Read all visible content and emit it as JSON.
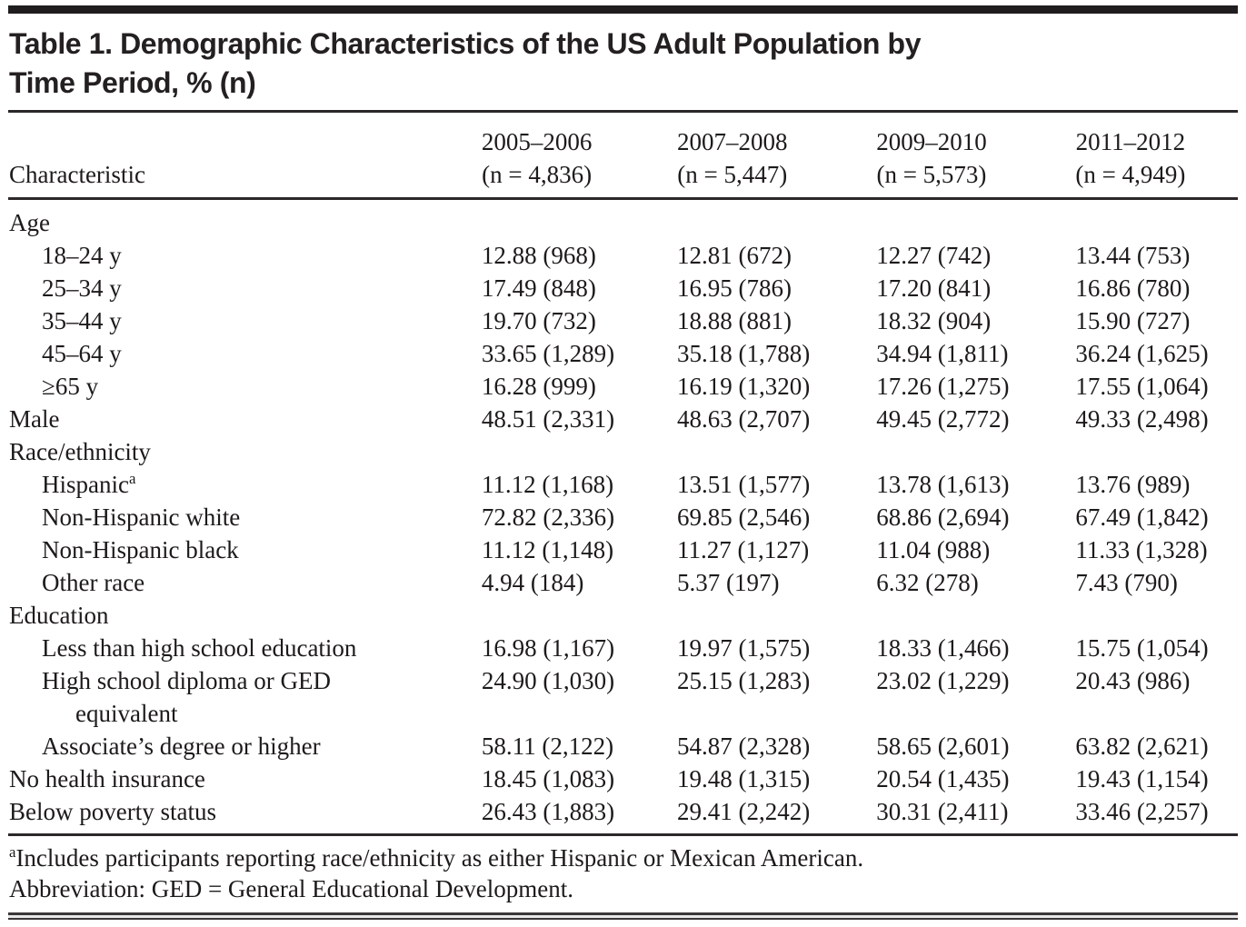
{
  "table": {
    "title_lines": [
      "Table 1. Demographic Characteristics of the US Adult Population by",
      "Time Period, % (n)"
    ],
    "col_label": "Characteristic",
    "columns": [
      {
        "period": "2005–2006",
        "n": "(n = 4,836)"
      },
      {
        "period": "2007–2008",
        "n": "(n = 5,447)"
      },
      {
        "period": "2009–2010",
        "n": "(n = 5,573)"
      },
      {
        "period": "2011–2012",
        "n": "(n = 4,949)"
      }
    ],
    "rows": [
      {
        "label": "Age",
        "indent": 0,
        "values": []
      },
      {
        "label": "18–24 y",
        "indent": 1,
        "values": [
          "12.88 (968)",
          "12.81 (672)",
          "12.27 (742)",
          "13.44 (753)"
        ]
      },
      {
        "label": "25–34 y",
        "indent": 1,
        "values": [
          "17.49 (848)",
          "16.95 (786)",
          "17.20 (841)",
          "16.86 (780)"
        ]
      },
      {
        "label": "35–44 y",
        "indent": 1,
        "values": [
          "19.70 (732)",
          "18.88 (881)",
          "18.32 (904)",
          "15.90 (727)"
        ]
      },
      {
        "label": "45–64 y",
        "indent": 1,
        "values": [
          "33.65 (1,289)",
          "35.18 (1,788)",
          "34.94 (1,811)",
          "36.24 (1,625)"
        ]
      },
      {
        "label": "≥65 y",
        "indent": 1,
        "values": [
          "16.28 (999)",
          "16.19 (1,320)",
          "17.26 (1,275)",
          "17.55 (1,064)"
        ]
      },
      {
        "label": "Male",
        "indent": 0,
        "values": [
          "48.51 (2,331)",
          "48.63 (2,707)",
          "49.45 (2,772)",
          "49.33 (2,498)"
        ]
      },
      {
        "label": "Race/ethnicity",
        "indent": 0,
        "values": []
      },
      {
        "label": "Hispanic",
        "sup": "a",
        "indent": 1,
        "values": [
          "11.12 (1,168)",
          "13.51 (1,577)",
          "13.78 (1,613)",
          "13.76 (989)"
        ]
      },
      {
        "label": "Non-Hispanic white",
        "indent": 1,
        "values": [
          "72.82 (2,336)",
          "69.85 (2,546)",
          "68.86 (2,694)",
          "67.49 (1,842)"
        ]
      },
      {
        "label": "Non-Hispanic black",
        "indent": 1,
        "values": [
          "11.12 (1,148)",
          "11.27 (1,127)",
          "11.04 (988)",
          "11.33 (1,328)"
        ]
      },
      {
        "label": "Other race",
        "indent": 1,
        "values": [
          "4.94 (184)",
          "5.37 (197)",
          "6.32 (278)",
          "7.43 (790)"
        ]
      },
      {
        "label": "Education",
        "indent": 0,
        "values": []
      },
      {
        "label": "Less than high school education",
        "indent": 1,
        "values": [
          "16.98 (1,167)",
          "19.97 (1,575)",
          "18.33 (1,466)",
          "15.75 (1,054)"
        ]
      },
      {
        "label": "High school diploma or GED equivalent",
        "label_lines": [
          "High school diploma or GED",
          "equivalent"
        ],
        "indent": 1,
        "values": [
          "24.90 (1,030)",
          "25.15 (1,283)",
          "23.02 (1,229)",
          "20.43 (986)"
        ]
      },
      {
        "label": "Associate’s degree or higher",
        "indent": 1,
        "values": [
          "58.11 (2,122)",
          "54.87 (2,328)",
          "58.65 (2,601)",
          "63.82 (2,621)"
        ]
      },
      {
        "label": "No health insurance",
        "indent": 0,
        "values": [
          "18.45 (1,083)",
          "19.48 (1,315)",
          "20.54 (1,435)",
          "19.43 (1,154)"
        ]
      },
      {
        "label": "Below poverty status",
        "indent": 0,
        "values": [
          "26.43 (1,883)",
          "29.41 (2,242)",
          "30.31 (2,411)",
          "33.46 (2,257)"
        ]
      }
    ],
    "footnotes": [
      {
        "sup": "a",
        "text": "Includes participants reporting race/ethnicity as either Hispanic or Mexican American."
      },
      {
        "sup": "",
        "text": "Abbreviation: GED = General Educational Development."
      }
    ],
    "colors": {
      "text": "#1d1a1b",
      "rule": "#2c2829",
      "top_bar": "#201d1e"
    }
  }
}
